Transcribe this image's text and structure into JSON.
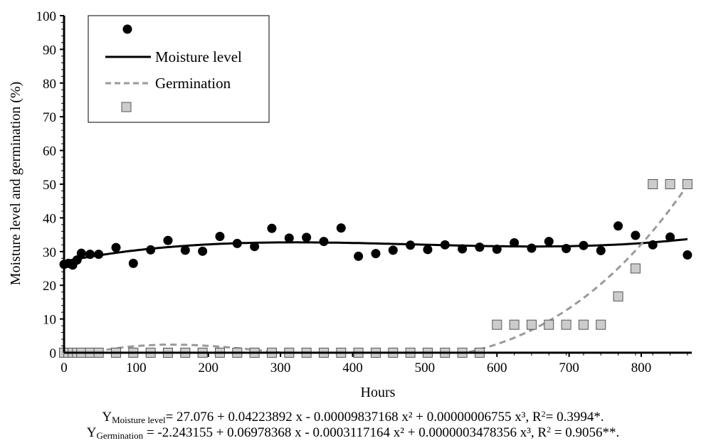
{
  "chart_data": {
    "type": "scatter",
    "xlabel": "Hours",
    "ylabel": "Moisture level and germination (%)",
    "xlim": [
      0,
      870
    ],
    "ylim": [
      0,
      100
    ],
    "x_ticks": [
      "0",
      "100",
      "200",
      "300",
      "400",
      "500",
      "600",
      "700",
      "800"
    ],
    "y_ticks": [
      "0",
      "10",
      "20",
      "30",
      "40",
      "50",
      "60",
      "70",
      "80",
      "90",
      "100"
    ],
    "legend": {
      "position": "top-left",
      "entries": [
        {
          "label": "",
          "marker": "circle"
        },
        {
          "label": "Moisture level",
          "line": "solid"
        },
        {
          "label": "Germination",
          "line": "dashed"
        },
        {
          "label": "",
          "marker": "square"
        }
      ]
    },
    "colors": {
      "moisture": "#000000",
      "germination_line": "#9a9a9a",
      "germination_marker": "#cccccc"
    },
    "series": [
      {
        "marker": "circle",
        "x": [
          0,
          6,
          12,
          18,
          24,
          36,
          48,
          72,
          96,
          120,
          144,
          168,
          192,
          216,
          240,
          264,
          288,
          312,
          336,
          360,
          384,
          408,
          432,
          456,
          480,
          504,
          528,
          552,
          576,
          600,
          624,
          648,
          672,
          696,
          720,
          744,
          768,
          792,
          816,
          840,
          864
        ],
        "values": [
          26.2,
          26.5,
          26.0,
          27.5,
          29.5,
          29.2,
          29.2,
          31.2,
          26.5,
          30.5,
          33.3,
          30.4,
          30.1,
          34.5,
          32.4,
          31.5,
          36.9,
          34.0,
          34.2,
          33.0,
          37.0,
          28.6,
          29.4,
          30.4,
          31.9,
          30.6,
          32.0,
          30.8,
          31.3,
          30.7,
          32.6,
          31.0,
          33.0,
          30.9,
          31.8,
          30.3,
          37.6,
          34.8,
          32.0,
          34.3,
          29.0
        ]
      },
      {
        "name": "Moisture level",
        "line": "solid",
        "equation_coefficients": [
          27.076,
          0.04223892,
          -9.837168e-05,
          6.755e-08
        ]
      },
      {
        "name": "Germination",
        "line": "dashed",
        "equation_coefficients": [
          -2.243155,
          0.06978368,
          -0.0003117164,
          3.478356e-07
        ]
      },
      {
        "marker": "square",
        "x": [
          0,
          6,
          12,
          18,
          24,
          36,
          48,
          72,
          96,
          120,
          144,
          168,
          192,
          216,
          240,
          264,
          288,
          312,
          336,
          360,
          384,
          408,
          432,
          456,
          480,
          504,
          528,
          552,
          576,
          600,
          624,
          648,
          672,
          696,
          720,
          744,
          768,
          792,
          816,
          840,
          864
        ],
        "values": [
          0,
          0,
          0,
          0,
          0,
          0,
          0,
          0,
          0,
          0,
          0,
          0,
          0,
          0,
          0,
          0,
          0,
          0,
          0,
          0,
          0,
          0,
          0,
          0,
          0,
          0,
          0,
          0,
          0,
          8.3,
          8.3,
          8.3,
          8.3,
          8.3,
          8.3,
          8.3,
          16.7,
          25,
          50,
          50,
          50
        ]
      }
    ]
  },
  "equations": {
    "moisture": {
      "prefix": "Y",
      "sub": "Moisture level",
      "body_a": "= 27.076 + 0.04223892 x - 0.00009837168 x² + 0.00000006755 x³, R",
      "sup": "2",
      "body_b": "= 0.3994*."
    },
    "germination": {
      "prefix": "Y",
      "sub": "Germination",
      "body_a": " = -2.243155 + 0.06978368 x - 0.0003117164 x² + 0.0000003478356 x³, R",
      "sup": "2",
      "body_b": " = 0.9056**."
    }
  }
}
